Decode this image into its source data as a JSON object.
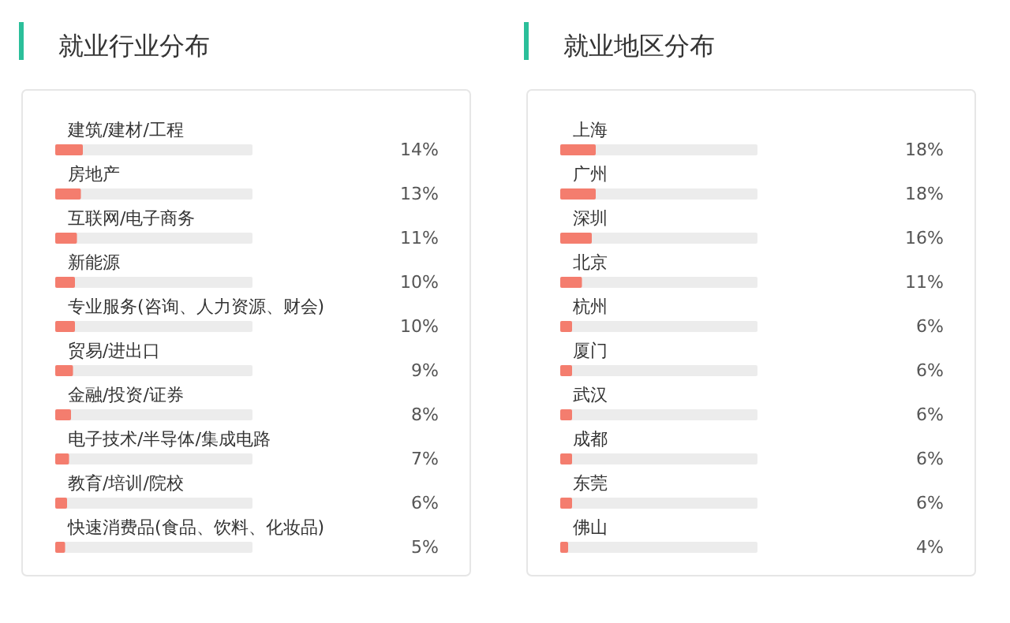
{
  "chart_data": [
    {
      "type": "bar",
      "orientation": "horizontal",
      "title": "就业行业分布",
      "color": "#f47d6e",
      "xlim": [
        0,
        100
      ],
      "categories": [
        "建筑/建材/工程",
        "房地产",
        "互联网/电子商务",
        "新能源",
        "专业服务(咨询、人力资源、财会)",
        "贸易/进出口",
        "金融/投资/证券",
        "电子技术/半导体/集成电路",
        "教育/培训/院校",
        "快速消费品(食品、饮料、化妆品)"
      ],
      "values": [
        14,
        13,
        11,
        10,
        10,
        9,
        8,
        7,
        6,
        5
      ],
      "value_labels": [
        "14%",
        "13%",
        "11%",
        "10%",
        "10%",
        "9%",
        "8%",
        "7%",
        "6%",
        "5%"
      ]
    },
    {
      "type": "bar",
      "orientation": "horizontal",
      "title": "就业地区分布",
      "color": "#f47d6e",
      "xlim": [
        0,
        100
      ],
      "categories": [
        "上海",
        "广州",
        "深圳",
        "北京",
        "杭州",
        "厦门",
        "武汉",
        "成都",
        "东莞",
        "佛山"
      ],
      "values": [
        18,
        18,
        16,
        11,
        6,
        6,
        6,
        6,
        6,
        4
      ],
      "value_labels": [
        "18%",
        "18%",
        "16%",
        "11%",
        "6%",
        "6%",
        "6%",
        "6%",
        "6%",
        "4%"
      ]
    }
  ]
}
